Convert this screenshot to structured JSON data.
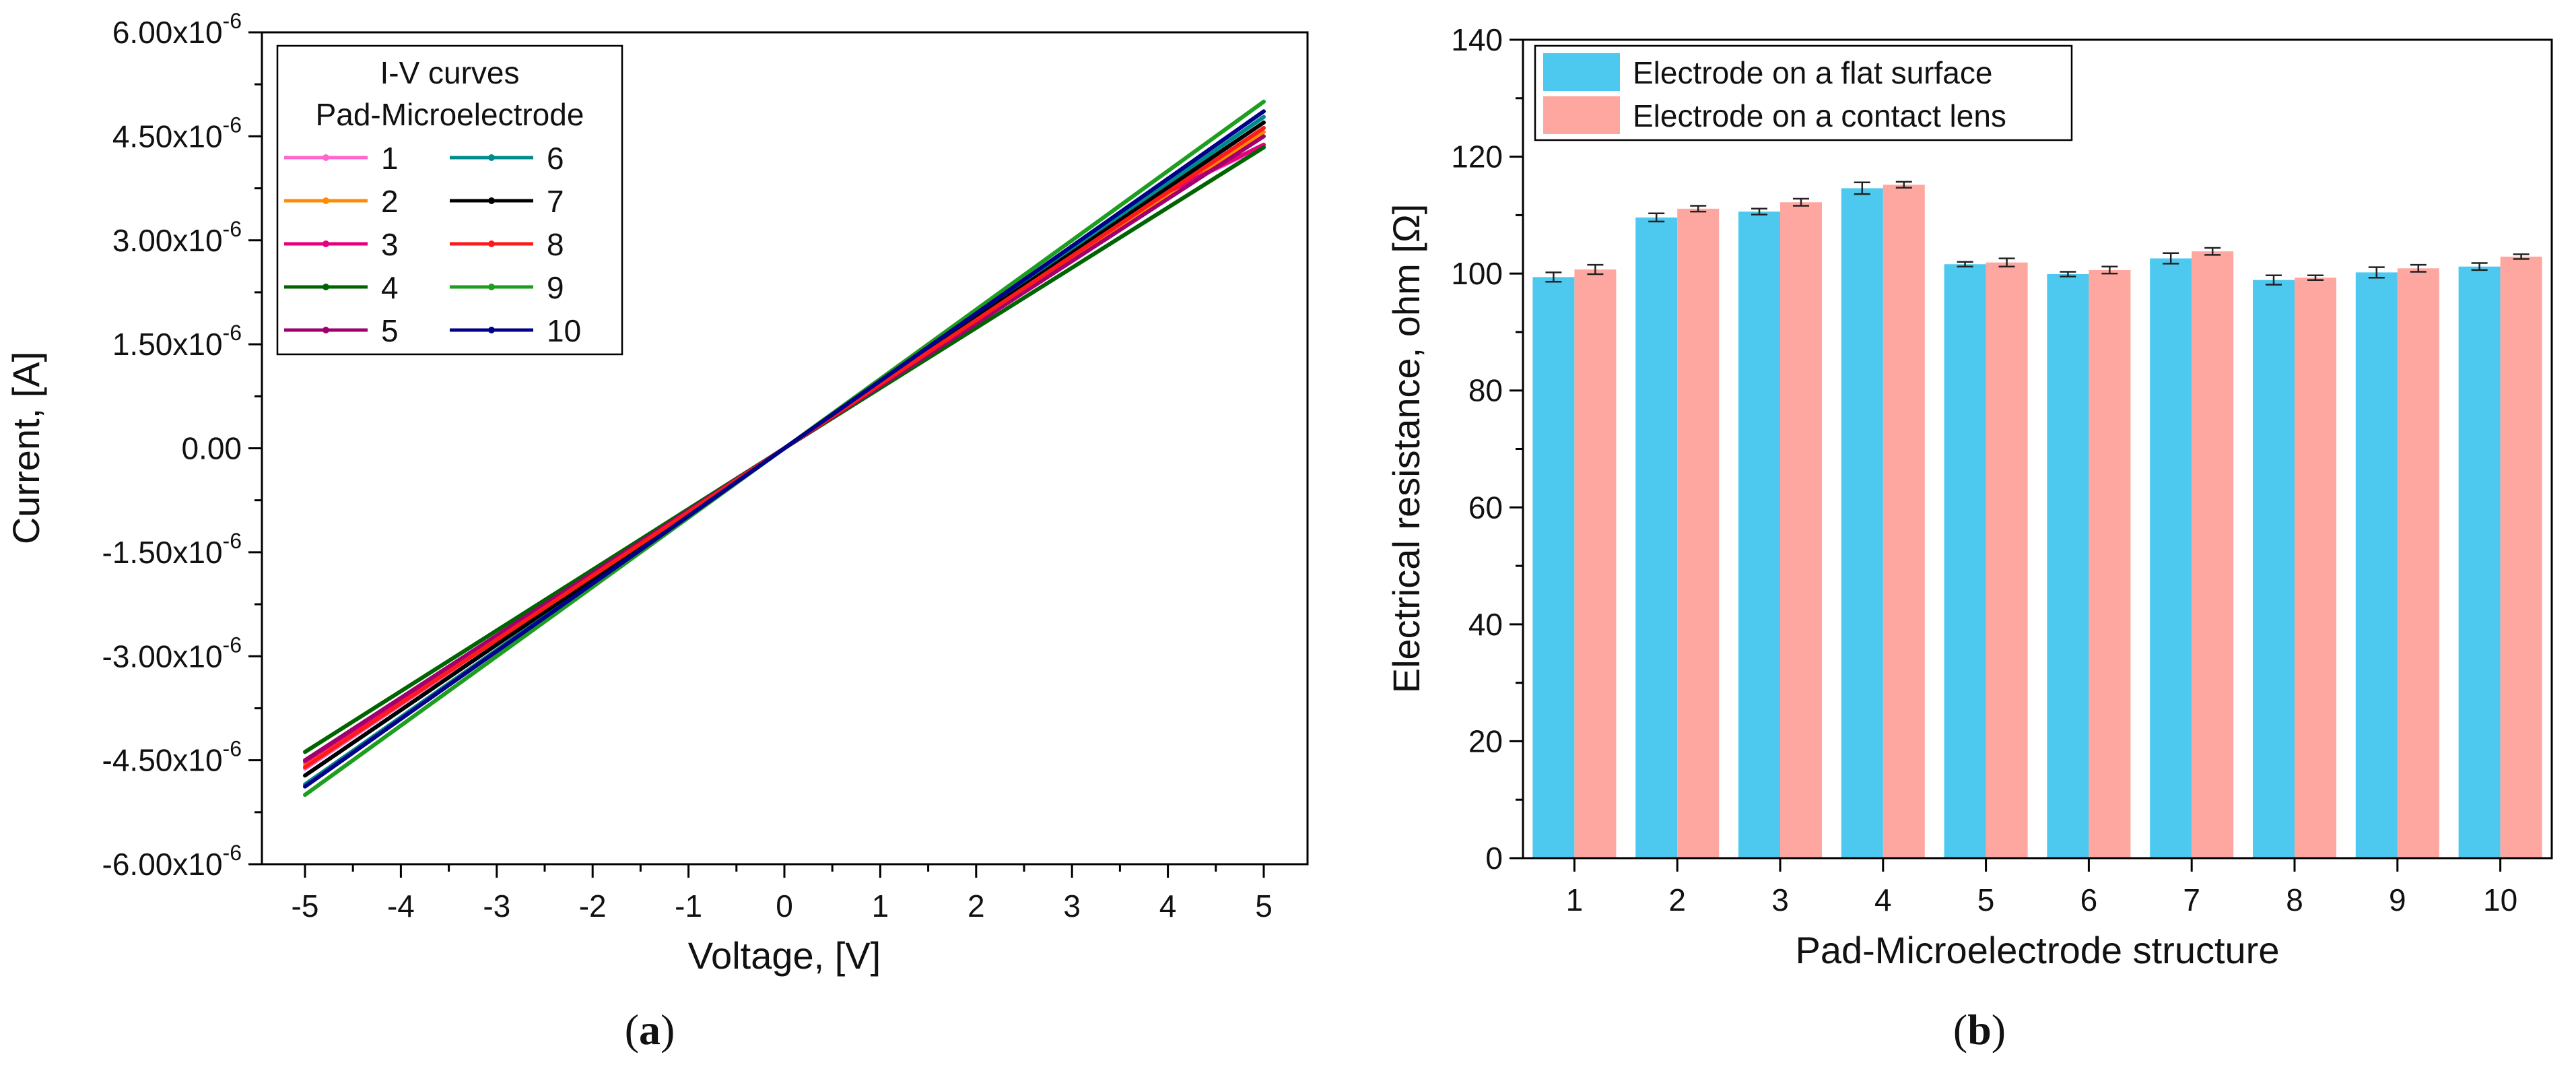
{
  "chart_data": [
    {
      "type": "line",
      "panel": "a",
      "panel_label": "a",
      "xlabel": "Voltage, [V]",
      "ylabel": "Current, [A]",
      "xlim": [
        -5.5,
        5.5
      ],
      "ylim": [
        -6e-06,
        6e-06
      ],
      "xticks": [
        -5,
        -4,
        -3,
        -2,
        -1,
        0,
        1,
        2,
        3,
        4,
        5
      ],
      "xtick_labels": [
        "-5",
        "-4",
        "-3",
        "-2",
        "-1",
        "0",
        "1",
        "2",
        "3",
        "4",
        "5"
      ],
      "yticks": [
        6e-06,
        4.5e-06,
        3e-06,
        1.5e-06,
        0,
        -1.5e-06,
        -3e-06,
        -4.5e-06,
        -6e-06
      ],
      "ytick_labels": [
        {
          "base": "6.00x10",
          "exp": "-6"
        },
        {
          "base": "4.50x10",
          "exp": "-6"
        },
        {
          "base": "3.00x10",
          "exp": "-6"
        },
        {
          "base": "1.50x10",
          "exp": "-6"
        },
        {
          "base": "0.00",
          "exp": ""
        },
        {
          "base": "-1.50x10",
          "exp": "-6"
        },
        {
          "base": "-3.00x10",
          "exp": "-6"
        },
        {
          "base": "-4.50x10",
          "exp": "-6"
        },
        {
          "base": "-6.00x10",
          "exp": "-6"
        }
      ],
      "legend": {
        "title_line1": "I-V curves",
        "title_line2": "Pad-Microelectrode",
        "placement": "top-left"
      },
      "series": [
        {
          "name": "1",
          "color": "#ff66cc",
          "x": [
            -5,
            0,
            4,
            5
          ],
          "y": [
            -4.62e-06,
            0,
            3.7e-06,
            4.36e-06
          ]
        },
        {
          "name": "2",
          "color": "#ff8c00",
          "x": [
            -5,
            0,
            5
          ],
          "y": [
            -4.56e-06,
            0,
            4.56e-06
          ]
        },
        {
          "name": "3",
          "color": "#e6007e",
          "x": [
            -5,
            0,
            4,
            5
          ],
          "y": [
            -4.52e-06,
            0,
            3.7e-06,
            4.38e-06
          ]
        },
        {
          "name": "4",
          "color": "#006400",
          "x": [
            -5,
            0,
            5
          ],
          "y": [
            -4.38e-06,
            0,
            4.34e-06
          ]
        },
        {
          "name": "5",
          "color": "#a0006e",
          "x": [
            -5,
            0,
            5
          ],
          "y": [
            -4.5e-06,
            0,
            4.5e-06
          ]
        },
        {
          "name": "6",
          "color": "#008b8b",
          "x": [
            -5,
            0,
            5
          ],
          "y": [
            -4.85e-06,
            0,
            4.78e-06
          ]
        },
        {
          "name": "7",
          "color": "#000000",
          "x": [
            -5,
            0,
            5
          ],
          "y": [
            -4.72e-06,
            0,
            4.7e-06
          ]
        },
        {
          "name": "8",
          "color": "#ff1a1a",
          "x": [
            -5,
            0,
            5
          ],
          "y": [
            -4.6e-06,
            0,
            4.62e-06
          ]
        },
        {
          "name": "9",
          "color": "#1e9e1e",
          "x": [
            -5,
            0,
            5
          ],
          "y": [
            -5e-06,
            0,
            5e-06
          ]
        },
        {
          "name": "10",
          "color": "#00008b",
          "x": [
            -5,
            0,
            5
          ],
          "y": [
            -4.88e-06,
            0,
            4.86e-06
          ]
        }
      ]
    },
    {
      "type": "bar",
      "panel": "b",
      "panel_label": "b",
      "xlabel": "Pad-Microelectrode structure",
      "ylabel": "Electrical resistance, ohm [Ω]",
      "ylim": [
        0,
        140
      ],
      "yticks": [
        0,
        20,
        40,
        60,
        80,
        100,
        120,
        140
      ],
      "categories": [
        "1",
        "2",
        "3",
        "4",
        "5",
        "6",
        "7",
        "8",
        "9",
        "10"
      ],
      "legend_placement": "top-left",
      "series": [
        {
          "name": "Electrode on a flat surface",
          "color": "#4dc8ee",
          "values": [
            99.4,
            109.6,
            110.6,
            114.6,
            101.6,
            99.9,
            102.6,
            98.9,
            100.2,
            101.2
          ],
          "errors": [
            0.8,
            0.7,
            0.5,
            1.0,
            0.4,
            0.4,
            0.9,
            0.8,
            0.9,
            0.6
          ]
        },
        {
          "name": "Electrode on a contact lens",
          "color": "#fea7a0",
          "values": [
            100.7,
            111.1,
            112.2,
            115.2,
            101.9,
            100.6,
            103.8,
            99.3,
            100.9,
            102.9
          ],
          "errors": [
            0.8,
            0.5,
            0.6,
            0.5,
            0.7,
            0.6,
            0.6,
            0.4,
            0.6,
            0.4
          ]
        }
      ]
    }
  ]
}
